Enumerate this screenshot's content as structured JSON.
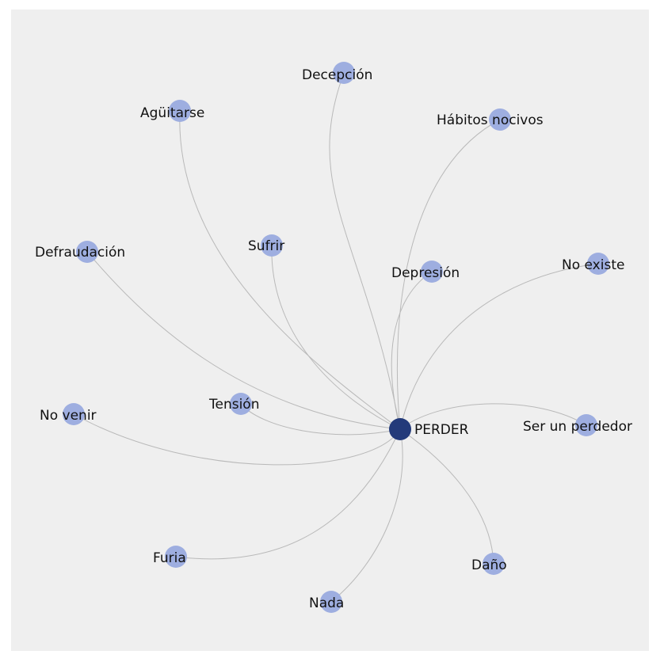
{
  "colors": {
    "background": "#efefef",
    "center_node": "#233a7a",
    "leaf_node": "#9eaee0",
    "edge": "#b9b9b9",
    "label": "#111111"
  },
  "graph": {
    "center": {
      "id": "center",
      "label": "PERDER"
    },
    "nodes": [
      {
        "id": "decepcion",
        "label": "Decepción"
      },
      {
        "id": "aguitarse",
        "label": "Agüitarse"
      },
      {
        "id": "habitos-nocivos",
        "label": "Hábitos nocivos"
      },
      {
        "id": "defraudacion",
        "label": "Defraudación"
      },
      {
        "id": "sufrir",
        "label": "Sufrir"
      },
      {
        "id": "depresion",
        "label": "Depresión"
      },
      {
        "id": "no-existe",
        "label": "No existe"
      },
      {
        "id": "tension",
        "label": "Tensión"
      },
      {
        "id": "no-venir",
        "label": "No venir"
      },
      {
        "id": "ser-un-perdedor",
        "label": "Ser un perdedor"
      },
      {
        "id": "furia",
        "label": "Furia"
      },
      {
        "id": "dano",
        "label": "Daño"
      },
      {
        "id": "nada",
        "label": "Nada"
      }
    ],
    "edges": [
      {
        "from": "center",
        "to": "decepcion"
      },
      {
        "from": "center",
        "to": "aguitarse"
      },
      {
        "from": "center",
        "to": "habitos-nocivos"
      },
      {
        "from": "center",
        "to": "defraudacion"
      },
      {
        "from": "center",
        "to": "sufrir"
      },
      {
        "from": "center",
        "to": "depresion"
      },
      {
        "from": "center",
        "to": "no-existe"
      },
      {
        "from": "center",
        "to": "tension"
      },
      {
        "from": "center",
        "to": "no-venir"
      },
      {
        "from": "center",
        "to": "ser-un-perdedor"
      },
      {
        "from": "center",
        "to": "furia"
      },
      {
        "from": "center",
        "to": "dano"
      },
      {
        "from": "center",
        "to": "nada"
      }
    ]
  }
}
